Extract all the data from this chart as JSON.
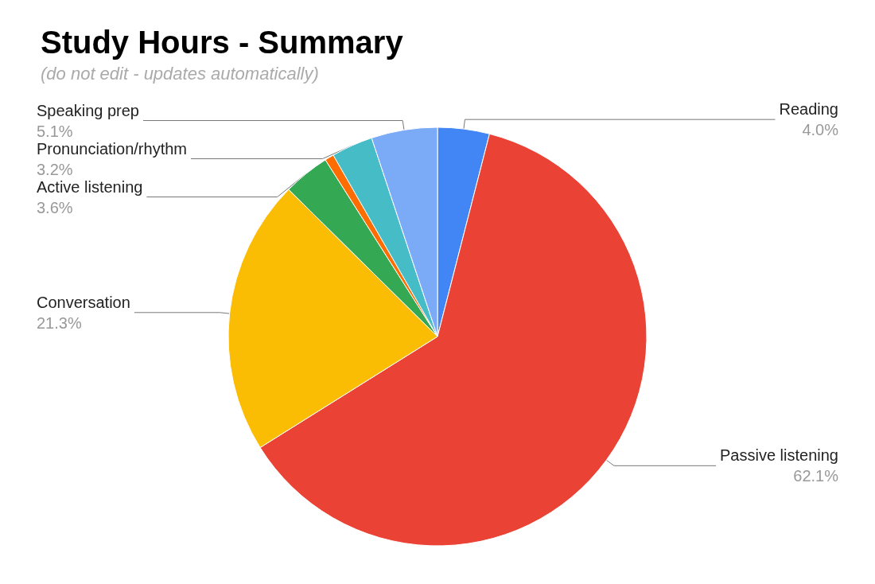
{
  "chart_data": {
    "type": "pie",
    "title": "Study Hours - Summary",
    "subtitle": "(do not edit - updates automatically)",
    "categories": [
      "Reading",
      "Passive listening",
      "Conversation",
      "Active listening",
      null,
      "Pronunciation/rhythm",
      "Speaking prep"
    ],
    "values": [
      4.0,
      62.1,
      21.3,
      3.6,
      0.7,
      3.2,
      5.1
    ],
    "value_labels": [
      "4.0%",
      "62.1%",
      "21.3%",
      "3.6%",
      null,
      "3.2%",
      "5.1%"
    ],
    "colors": [
      "#4285f4",
      "#ea4335",
      "#fbbc04",
      "#34a853",
      "#ff6d01",
      "#46bdc6",
      "#7baaf7"
    ],
    "legend": false
  }
}
